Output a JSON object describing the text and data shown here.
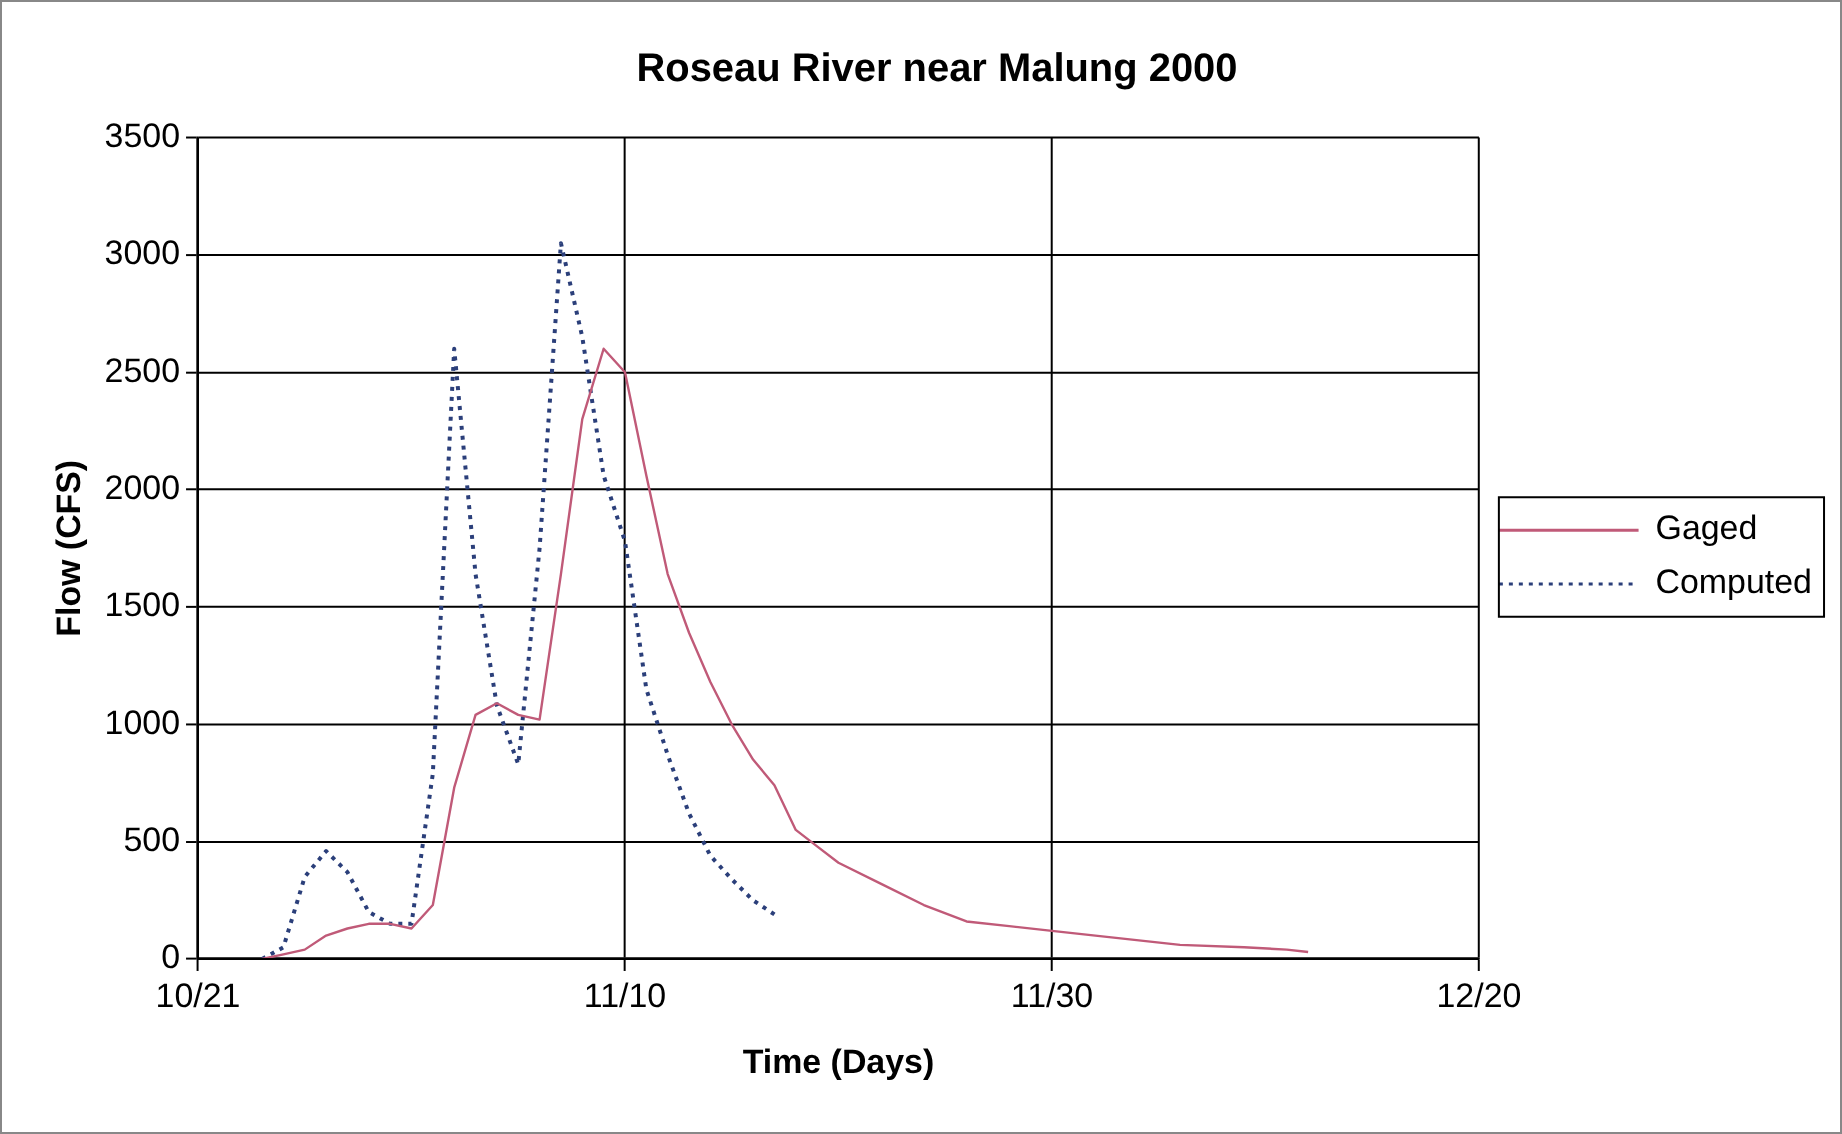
{
  "chart_data": {
    "type": "line",
    "title": "Roseau River near Malung 2000",
    "xlabel": "Time (Days)",
    "ylabel": "Flow (CFS)",
    "xlim": [
      "--10-21",
      "--12-20"
    ],
    "xticks": [
      {
        "value": "--10-21",
        "label": "10/21"
      },
      {
        "value": "--11-10",
        "label": "11/10"
      },
      {
        "value": "--11-30",
        "label": "11/30"
      },
      {
        "value": "--12-20",
        "label": "12/20"
      }
    ],
    "ylim": [
      0,
      3500
    ],
    "yticks": [
      0,
      500,
      1000,
      1500,
      2000,
      2500,
      3000,
      3500
    ],
    "grid": true,
    "legend": "right",
    "marker": "none",
    "series": [
      {
        "name": "Gaged",
        "color": "#c05a78",
        "line_style": "solid",
        "x": [
          "--10-24",
          "--10-25",
          "--10-26",
          "--10-27",
          "--10-28",
          "--10-29",
          "--10-30",
          "--10-31",
          "--11-01",
          "--11-02",
          "--11-03",
          "--11-04",
          "--11-05",
          "--11-06",
          "--11-07",
          "--11-08",
          "--11-09",
          "--11-10",
          "--11-11",
          "--11-12",
          "--11-13",
          "--11-14",
          "--11-15",
          "--11-16",
          "--11-17",
          "--11-18",
          "--11-19",
          "--11-20",
          "--11-22",
          "--11-24",
          "--11-26",
          "--11-28",
          "--11-30",
          "--12-03",
          "--12-06",
          "--12-09",
          "--12-11",
          "--12-12"
        ],
        "values": [
          0,
          20,
          40,
          100,
          130,
          150,
          150,
          130,
          230,
          730,
          1040,
          1090,
          1040,
          1020,
          1640,
          2300,
          2600,
          2500,
          2060,
          1640,
          1390,
          1180,
          1000,
          850,
          740,
          550,
          480,
          410,
          320,
          230,
          160,
          140,
          120,
          90,
          60,
          50,
          40,
          30
        ]
      },
      {
        "name": "Computed",
        "color": "#2b3f7a",
        "line_style": "dotted",
        "x": [
          "--10-24",
          "--10-25",
          "--10-26",
          "--10-27",
          "--10-28",
          "--10-29",
          "--10-30",
          "--10-31",
          "--11-01",
          "--11-02",
          "--11-03",
          "--11-04",
          "--11-05",
          "--11-06",
          "--11-07",
          "--11-08",
          "--11-09",
          "--11-10",
          "--11-11",
          "--11-12",
          "--11-13",
          "--11-14",
          "--11-15",
          "--11-16",
          "--11-17"
        ],
        "values": [
          0,
          50,
          350,
          460,
          370,
          200,
          150,
          150,
          790,
          2600,
          1640,
          1080,
          830,
          1750,
          3050,
          2650,
          2060,
          1780,
          1150,
          870,
          620,
          440,
          340,
          250,
          190
        ]
      }
    ]
  }
}
